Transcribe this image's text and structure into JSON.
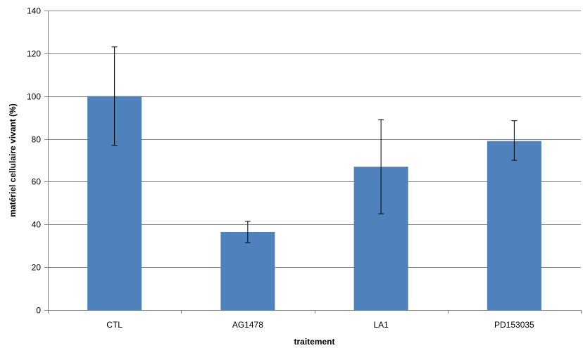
{
  "chart_data": {
    "type": "bar",
    "xlabel": "traitement",
    "ylabel": "matériel cellulaire vivant (%)",
    "categories": [
      "CTL",
      "AG1478",
      "LA1",
      "PD153035"
    ],
    "values": [
      100,
      36.5,
      67,
      79
    ],
    "error_low": [
      77,
      31.5,
      45,
      70
    ],
    "error_high": [
      123,
      41.5,
      89,
      88.5
    ],
    "ylim": [
      0,
      140
    ],
    "yticks": [
      0,
      20,
      40,
      60,
      80,
      100,
      120,
      140
    ],
    "grid": true,
    "legend": "none",
    "colors": {
      "bar": "#4f81bd",
      "grid": "#868686",
      "axis": "#868686",
      "error_bar": "#000000"
    }
  }
}
